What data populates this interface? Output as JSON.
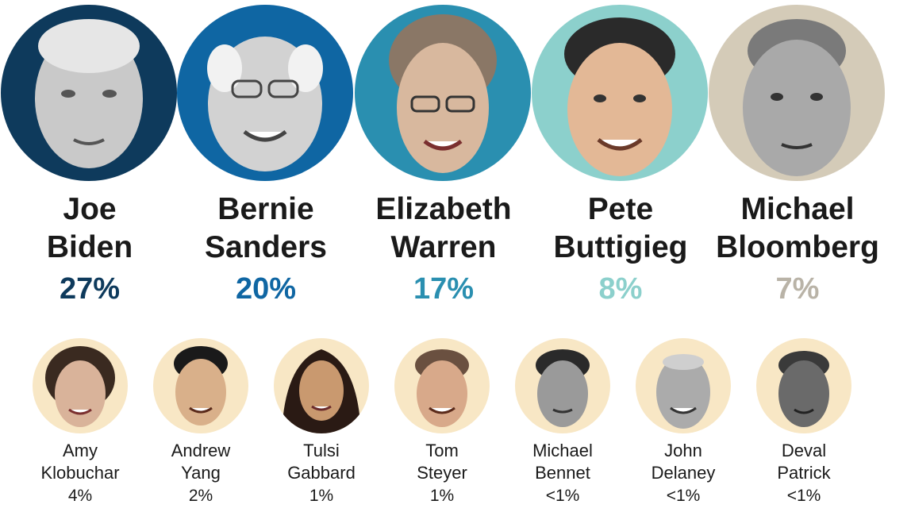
{
  "top_candidates": [
    {
      "first": "Joe",
      "last": "Biden",
      "percent": "27%",
      "color": "#0e3a5c",
      "face": "#c9c9c9"
    },
    {
      "first": "Bernie",
      "last": "Sanders",
      "percent": "20%",
      "color": "#0f66a3",
      "face": "#d2d2d2"
    },
    {
      "first": "Elizabeth",
      "last": "Warren",
      "percent": "17%",
      "color": "#2a8fb0",
      "face": "#d8b89e"
    },
    {
      "first": "Pete",
      "last": "Buttigieg",
      "percent": "8%",
      "color": "#8cd0cc",
      "face": "#e3b896"
    },
    {
      "first": "Michael",
      "last": "Bloomberg",
      "percent": "7%",
      "color": "#d4cbb8",
      "face": "#a9a9a9"
    }
  ],
  "other_candidates": [
    {
      "first": "Amy",
      "last": "Klobuchar",
      "percent": "4%"
    },
    {
      "first": "Andrew",
      "last": "Yang",
      "percent": "2%"
    },
    {
      "first": "Tulsi",
      "last": "Gabbard",
      "percent": "1%"
    },
    {
      "first": "Tom",
      "last": "Steyer",
      "percent": "1%"
    },
    {
      "first": "Michael",
      "last": "Bennet",
      "percent": "<1%"
    },
    {
      "first": "John",
      "last": "Delaney",
      "percent": "<1%"
    },
    {
      "first": "Deval",
      "last": "Patrick",
      "percent": "<1%"
    }
  ],
  "colors": {
    "bottom_circle": "#f8e7c5",
    "text": "#1a1a1a"
  }
}
